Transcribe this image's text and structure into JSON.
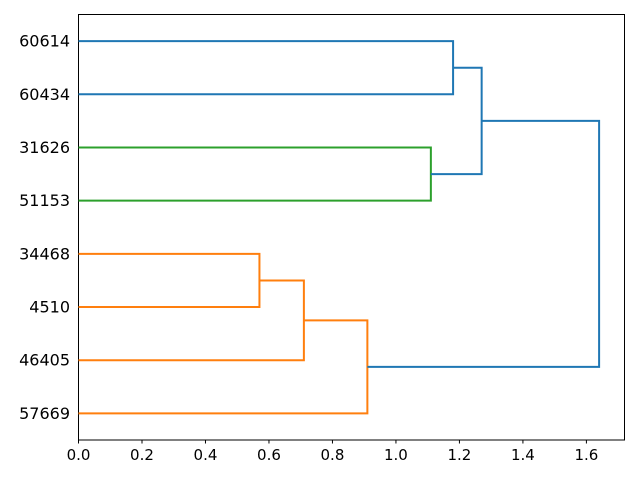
{
  "figure": {
    "background": "#ffffff",
    "title": ""
  },
  "chart_data": {
    "type": "dendrogram",
    "orientation": "right",
    "title": "",
    "xlabel": "",
    "ylabel": "",
    "grid": false,
    "legend": null,
    "xlim": [
      0,
      1.72
    ],
    "ylim": [
      0,
      80
    ],
    "leaves": [
      {
        "label": "60614",
        "pos": 5
      },
      {
        "label": "60434",
        "pos": 15
      },
      {
        "label": "31626",
        "pos": 25
      },
      {
        "label": "51153",
        "pos": 35
      },
      {
        "label": "34468",
        "pos": 45
      },
      {
        "label": "4510",
        "pos": 55
      },
      {
        "label": "46405",
        "pos": 65
      },
      {
        "label": "57669",
        "pos": 75
      }
    ],
    "merge_distances": [
      0.57,
      0.71,
      0.91,
      1.11,
      1.18,
      1.27,
      1.64
    ],
    "links": [
      {
        "x1": 0,
        "y1": 5,
        "x2": 0,
        "y2": 15,
        "x": 1.18,
        "color": "blue",
        "desc": "60614 + 60434 merge at 1.18"
      },
      {
        "x1": 0,
        "y1": 25,
        "x2": 0,
        "y2": 35,
        "x": 1.11,
        "color": "green",
        "desc": "31626 + 51153 merge at 1.11"
      },
      {
        "x1": 1.18,
        "y1": 10,
        "x2": 1.11,
        "y2": 30,
        "x": 1.27,
        "color": "blue",
        "desc": "(60614,60434) + (31626,51153) merge at 1.27"
      },
      {
        "x1": 0,
        "y1": 45,
        "x2": 0,
        "y2": 55,
        "x": 0.57,
        "color": "orange",
        "desc": "34468 + 4510 merge at 0.57"
      },
      {
        "x1": 0.57,
        "y1": 50,
        "x2": 0,
        "y2": 65,
        "x": 0.71,
        "color": "orange",
        "desc": "(34468,4510) + 46405 merge at 0.71"
      },
      {
        "x1": 0.71,
        "y1": 57.5,
        "x2": 0,
        "y2": 75,
        "x": 0.91,
        "color": "orange",
        "desc": "(34468,4510,46405) + 57669 merge at 0.91"
      },
      {
        "x1": 1.27,
        "y1": 20,
        "x2": 0.91,
        "y2": 66.25,
        "x": 1.64,
        "color": "blue",
        "desc": "root merge of top and bottom clusters at 1.64"
      }
    ],
    "x_ticks": [
      "0.0",
      "0.2",
      "0.4",
      "0.6",
      "0.8",
      "1.0",
      "1.2",
      "1.4",
      "1.6"
    ],
    "colors": {
      "blue": "#1f77b4",
      "orange": "#ff7f0e",
      "green": "#2ca02c",
      "axis": "#000000"
    }
  }
}
